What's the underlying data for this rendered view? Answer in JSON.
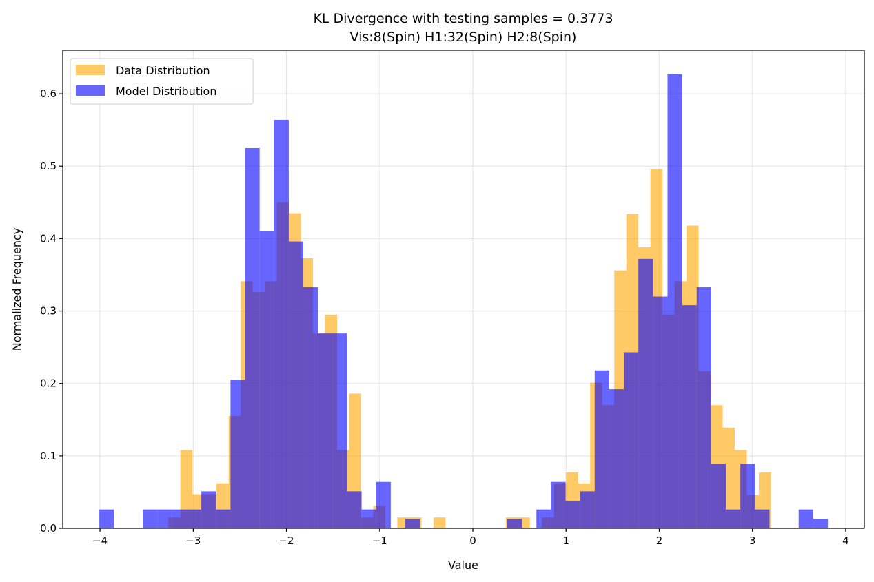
{
  "chart_data": {
    "type": "bar",
    "subtype": "overlaid-histogram",
    "title": "KL Divergence with testing samples = 0.3773",
    "subtitle": "Vis:8(Spin) H1:32(Spin) H2:8(Spin)",
    "xlabel": "Value",
    "ylabel": "Normalized Frequency",
    "xlim": [
      -4.4,
      4.2
    ],
    "ylim": [
      0,
      0.66
    ],
    "xticks": [
      -4,
      -3,
      -2,
      -1,
      0,
      1,
      2,
      3,
      4
    ],
    "xtick_labels": [
      "−4",
      "−3",
      "−2",
      "−1",
      "0",
      "1",
      "2",
      "3",
      "4"
    ],
    "yticks": [
      0,
      0.1,
      0.2,
      0.3,
      0.4,
      0.5,
      0.6
    ],
    "ytick_labels": [
      "0.0",
      "0.1",
      "0.2",
      "0.3",
      "0.4",
      "0.5",
      "0.6"
    ],
    "grid": true,
    "legend_position": "top-left",
    "series": [
      {
        "name": "Data Distribution",
        "color": "#FFA500",
        "alpha": 0.6,
        "bin_start": -3.267,
        "bin_width": 0.1293,
        "values": [
          0.015,
          0.108,
          0.047,
          0.047,
          0.062,
          0.155,
          0.341,
          0.326,
          0.341,
          0.45,
          0.435,
          0.373,
          0.269,
          0.295,
          0.108,
          0.186,
          0.015,
          0.031,
          0,
          0.015,
          0.015,
          0,
          0.015,
          0,
          0,
          0,
          0,
          0,
          0.015,
          0.015,
          0,
          0.015,
          0.062,
          0.077,
          0.062,
          0.201,
          0.17,
          0.356,
          0.434,
          0.388,
          0.496,
          0.295,
          0.341,
          0.418,
          0.217,
          0.17,
          0.139,
          0.108,
          0.046,
          0.077
        ]
      },
      {
        "name": "Model Distribution",
        "color": "#0000FF",
        "alpha": 0.6,
        "bin_start": -4.007,
        "bin_width": 0.1563,
        "values": [
          0.026,
          0,
          0,
          0.026,
          0.026,
          0.026,
          0.026,
          0.051,
          0.026,
          0.205,
          0.525,
          0.41,
          0.564,
          0.396,
          0.333,
          0.269,
          0.269,
          0.051,
          0.026,
          0.064,
          0,
          0.013,
          0,
          0,
          0,
          0,
          0,
          0,
          0.013,
          0,
          0.026,
          0.064,
          0.038,
          0.051,
          0.218,
          0.192,
          0.243,
          0.372,
          0.32,
          0.627,
          0.308,
          0.333,
          0.089,
          0.026,
          0.089,
          0.026,
          0,
          0,
          0.026,
          0.013
        ]
      }
    ]
  }
}
